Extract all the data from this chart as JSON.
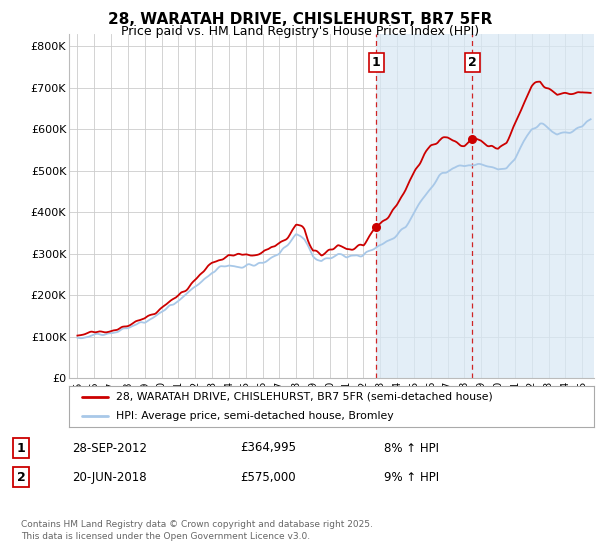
{
  "title_line1": "28, WARATAH DRIVE, CHISLEHURST, BR7 5FR",
  "title_line2": "Price paid vs. HM Land Registry's House Price Index (HPI)",
  "ylabel_ticks": [
    "£0",
    "£100K",
    "£200K",
    "£300K",
    "£400K",
    "£500K",
    "£600K",
    "£700K",
    "£800K"
  ],
  "ytick_values": [
    0,
    100000,
    200000,
    300000,
    400000,
    500000,
    600000,
    700000,
    800000
  ],
  "ylim": [
    0,
    830000
  ],
  "xlim_start": 1994.5,
  "xlim_end": 2025.7,
  "hpi_color": "#a8c8e8",
  "price_color": "#cc0000",
  "dashed_color": "#cc0000",
  "shade_color": "#d8e8f5",
  "marker1_x": 2012.75,
  "marker1_y": 364995,
  "marker2_x": 2018.47,
  "marker2_y": 575000,
  "legend_line1": "28, WARATAH DRIVE, CHISLEHURST, BR7 5FR (semi-detached house)",
  "legend_line2": "HPI: Average price, semi-detached house, Bromley",
  "annotation1_date": "28-SEP-2012",
  "annotation1_price": "£364,995",
  "annotation1_hpi": "8% ↑ HPI",
  "annotation2_date": "20-JUN-2018",
  "annotation2_price": "£575,000",
  "annotation2_hpi": "9% ↑ HPI",
  "footer": "Contains HM Land Registry data © Crown copyright and database right 2025.\nThis data is licensed under the Open Government Licence v3.0.",
  "background_color": "#ffffff",
  "grid_color": "#cccccc",
  "title1_fontsize": 11,
  "title2_fontsize": 9
}
